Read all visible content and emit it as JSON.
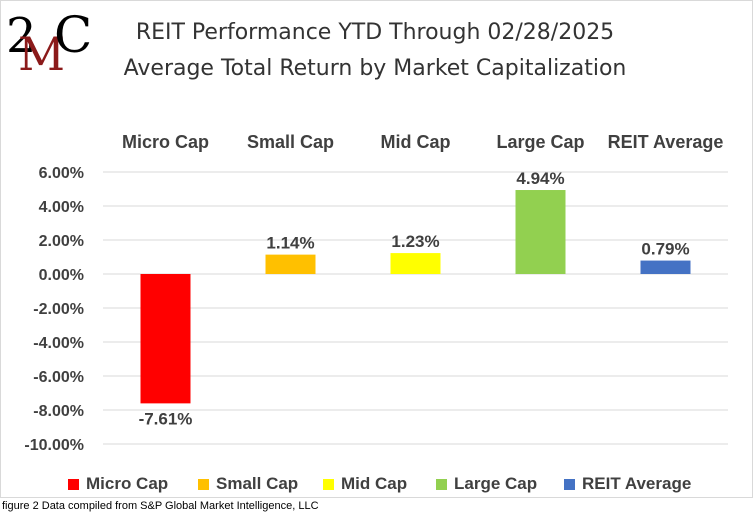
{
  "logo": {
    "text_top": "2",
    "text_mid": "M",
    "text_right": "C"
  },
  "title_line1": "REIT Performance YTD Through 02/28/2025",
  "title_line2": "Average Total Return by Market Capitalization",
  "caption": "figure 2 Data compiled from S&P Global Market Intelligence, LLC",
  "chart_data": {
    "type": "bar",
    "title": "REIT Performance YTD Through 02/28/2025 Average Total Return by Market Capitalization",
    "categories": [
      "Micro Cap",
      "Small Cap",
      "Mid Cap",
      "Large Cap",
      "REIT Average"
    ],
    "values": [
      -7.61,
      1.14,
      1.23,
      4.94,
      0.79
    ],
    "data_labels": [
      "-7.61%",
      "1.14%",
      "1.23%",
      "4.94%",
      "0.79%"
    ],
    "colors": [
      "#ff0000",
      "#ffc000",
      "#ffff00",
      "#92d050",
      "#4472c4"
    ],
    "ylim": [
      -10,
      6
    ],
    "yticks": [
      6,
      4,
      2,
      0,
      -2,
      -4,
      -6,
      -8,
      -10
    ],
    "ytick_labels": [
      "6.00%",
      "4.00%",
      "2.00%",
      "0.00%",
      "-2.00%",
      "-4.00%",
      "-6.00%",
      "-8.00%",
      "-10.00%"
    ],
    "grid": true,
    "legend": "bottom",
    "category_labels_position": "top"
  }
}
